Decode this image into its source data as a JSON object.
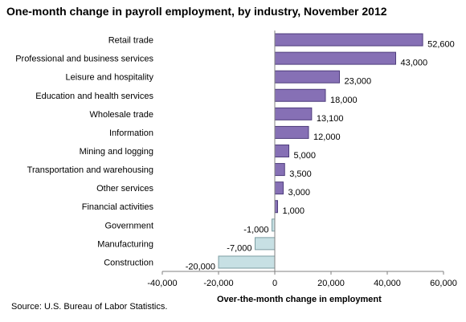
{
  "chart_data": {
    "type": "bar",
    "orientation": "horizontal",
    "title": "One-month change in payroll employment, by industry, November 2012",
    "xlabel": "Over-the-month change in employment",
    "ylabel": "",
    "source": "Source:  U.S. Bureau of Labor Statistics.",
    "categories": [
      "Retail trade",
      "Professional and business services",
      "Leisure and hospitality",
      "Education and health services",
      "Wholesale trade",
      "Information",
      "Mining and logging",
      "Transportation and warehousing",
      "Other services",
      "Financial activities",
      "Government",
      "Manufacturing",
      "Construction"
    ],
    "values": [
      52600,
      43000,
      23000,
      18000,
      13100,
      12000,
      5000,
      3500,
      3000,
      1000,
      -1000,
      -7000,
      -20000
    ],
    "value_labels": [
      "52,600",
      "43,000",
      "23,000",
      "18,000",
      "13,100",
      "12,000",
      "5,000",
      "3,500",
      "3,000",
      "1,000",
      "-1,000",
      "-7,000",
      "-20,000"
    ],
    "xlim": [
      -40000,
      60000
    ],
    "xticks": [
      -40000,
      -20000,
      0,
      20000,
      40000,
      60000
    ],
    "xtick_labels": [
      "-40,000",
      "-20,000",
      "0",
      "20,000",
      "40,000",
      "60,000"
    ],
    "grid": false,
    "colors": {
      "positive_fill": "#8670b5",
      "positive_stroke": "#4e3d7c",
      "negative_fill": "#c7e0e4",
      "negative_stroke": "#7d9da2",
      "axis": "#808080"
    }
  }
}
